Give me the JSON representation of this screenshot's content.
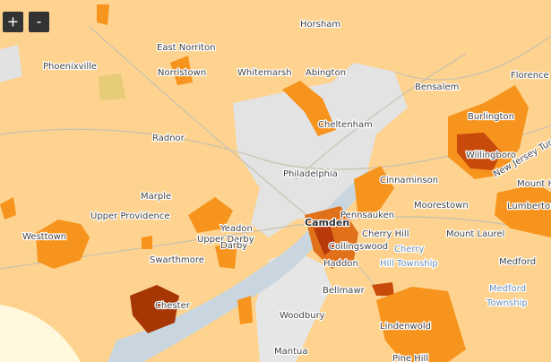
{
  "zoom_controls": {
    "zoom_in": "+",
    "zoom_out": "-"
  },
  "places": [
    "Horsham",
    "East Norriton",
    "Phoenixville",
    "Norristown",
    "Whitemarsh",
    "Abington",
    "Bensalem",
    "Florence",
    "Burlington",
    "Cheltenham",
    "Radnor",
    "Willingboro",
    "Philadelphia",
    "Cinnaminson",
    "New Jersey Turnpike",
    "Mount H",
    "Marple",
    "Moorestown",
    "Lumberton",
    "Upper Providence",
    "Camden",
    "Pennsauken",
    "Yeadon",
    "Cherry Hill",
    "Cherry",
    "Hill Township",
    "Upper Darby",
    "Mount Laurel",
    "Westtown",
    "Darby",
    "Collingswood",
    "Haddon",
    "Medford",
    "Swarthmore",
    "Medford",
    "Township",
    "Bellmawr",
    "Chester",
    "Woodbury",
    "Lindenwold",
    "Mantua",
    "Pine Hill"
  ]
}
